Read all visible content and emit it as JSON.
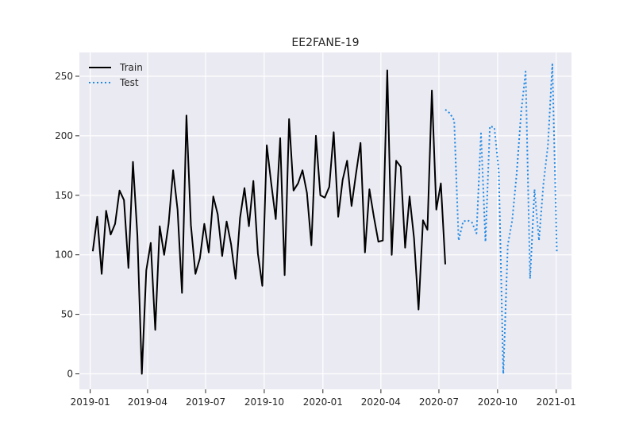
{
  "chart_data": {
    "type": "line",
    "title": "EE2FANE-19",
    "xlabel": "",
    "ylabel": "",
    "x_ticks": [
      "2019-01",
      "2019-04",
      "2019-07",
      "2019-10",
      "2020-01",
      "2020-04",
      "2020-07",
      "2020-10",
      "2021-01"
    ],
    "y_ticks": [
      "0",
      "50",
      "100",
      "150",
      "200",
      "250"
    ],
    "xlim": [
      "2018-12-15",
      "2021-01-25"
    ],
    "ylim": [
      -13,
      270
    ],
    "grid": true,
    "legend": "top-left",
    "series": [
      {
        "name": "Train",
        "color": "#000000",
        "style": "solid",
        "start": "2019-01-05",
        "step_days": 7,
        "values": [
          103,
          132,
          84,
          137,
          117,
          126,
          154,
          146,
          89,
          178,
          116,
          0,
          87,
          110,
          37,
          124,
          100,
          126,
          171,
          138,
          68,
          217,
          125,
          84,
          97,
          126,
          102,
          149,
          134,
          99,
          128,
          109,
          80,
          131,
          156,
          124,
          162,
          101,
          74,
          192,
          160,
          130,
          198,
          83,
          214,
          154,
          160,
          171,
          152,
          108,
          200,
          150,
          148,
          157,
          203,
          132,
          163,
          179,
          141,
          168,
          194,
          102,
          155,
          132,
          111,
          112,
          255,
          100,
          179,
          174,
          106,
          149,
          114,
          54,
          129,
          121,
          238,
          138,
          160,
          92
        ]
      },
      {
        "name": "Test",
        "color": "#1e88e5",
        "style": "dotted",
        "start": "2020-07-11",
        "step_days": 7,
        "values": [
          222,
          219,
          213,
          112,
          128,
          129,
          127,
          118,
          202,
          111,
          208,
          207,
          170,
          0,
          108,
          129,
          168,
          220,
          254,
          80,
          155,
          112,
          160,
          192,
          260,
          103
        ]
      }
    ]
  }
}
